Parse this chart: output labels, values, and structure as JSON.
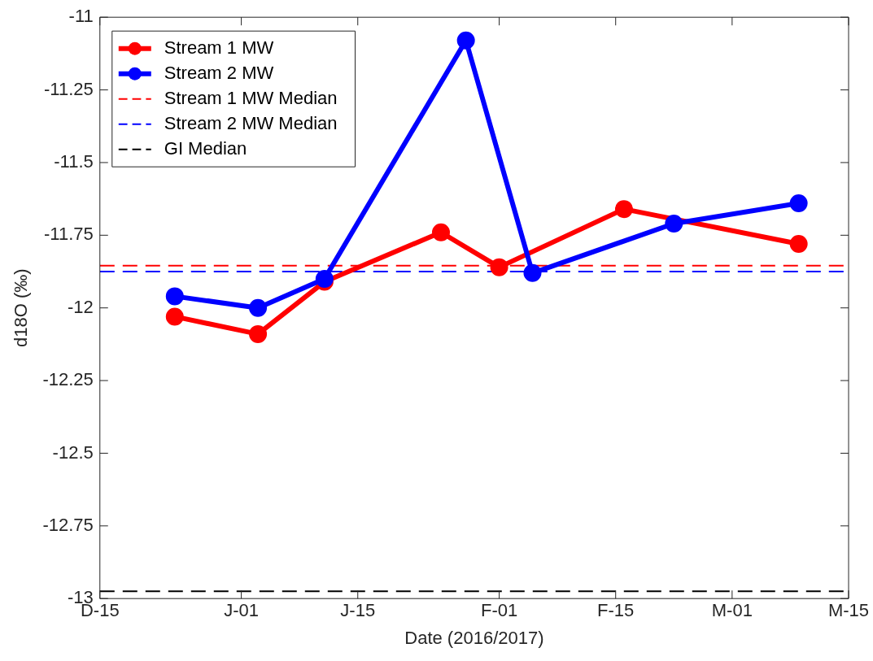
{
  "chart_data": {
    "type": "line",
    "xlabel": "Date (2016/2017)",
    "ylabel": "d18O (‰)",
    "series": [
      {
        "name": "Stream 1 MW",
        "color": "#ff0000",
        "x": [
          "2016-12-24",
          "2017-01-03",
          "2017-01-11",
          "2017-01-25",
          "2017-02-01",
          "2017-02-16",
          "2017-03-09"
        ],
        "values": [
          -12.03,
          -12.09,
          -11.91,
          -11.74,
          -11.86,
          -11.66,
          -11.78
        ]
      },
      {
        "name": "Stream 2 MW",
        "color": "#0000ff",
        "x": [
          "2016-12-24",
          "2017-01-03",
          "2017-01-11",
          "2017-01-28",
          "2017-02-05",
          "2017-02-22",
          "2017-03-09"
        ],
        "values": [
          -11.96,
          -12.0,
          -11.9,
          -11.08,
          -11.88,
          -11.71,
          -11.64
        ]
      }
    ],
    "ref_lines": [
      {
        "axis": "y",
        "value": -11.855,
        "label": "Stream 1 MW Median",
        "color": "#ff0000",
        "line_style": "dashed"
      },
      {
        "axis": "y",
        "value": -11.875,
        "label": "Stream 2 MW Median",
        "color": "#0000ff",
        "line_style": "dashed"
      },
      {
        "axis": "y",
        "value": -12.975,
        "label": "GI Median",
        "color": "#000000",
        "line_style": "dashed"
      }
    ],
    "xlim": [
      "2016-12-15",
      "2017-03-15"
    ],
    "xticks": [
      {
        "value": "2016-12-15",
        "label": "D-15"
      },
      {
        "value": "2017-01-01",
        "label": "J-01"
      },
      {
        "value": "2017-01-15",
        "label": "J-15"
      },
      {
        "value": "2017-02-01",
        "label": "F-01"
      },
      {
        "value": "2017-02-15",
        "label": "F-15"
      },
      {
        "value": "2017-03-01",
        "label": "M-01"
      },
      {
        "value": "2017-03-15",
        "label": "M-15"
      }
    ],
    "ylim": [
      -13,
      -11
    ],
    "yticks": [
      -13,
      -12.75,
      -12.5,
      -12.25,
      -12,
      -11.75,
      -11.5,
      -11.25,
      -11
    ],
    "grid": false,
    "legend": "top left",
    "marker": "circle",
    "line_style": "solid"
  }
}
